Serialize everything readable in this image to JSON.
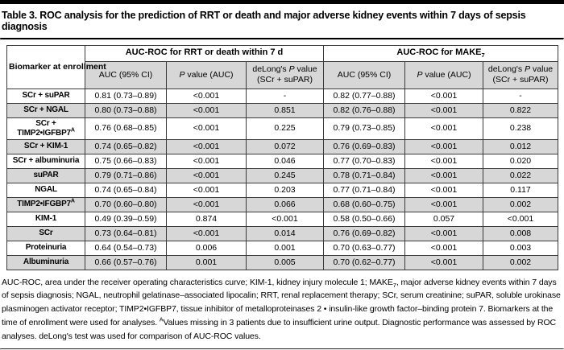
{
  "title": "Table 3. ROC analysis for the prediction of RRT or death and major adverse kidney events within 7 days of sepsis diagnosis",
  "table": {
    "col1_header": "Biomarker at enrollment",
    "group1": "AUC-ROC for RRT or death within 7 d",
    "group2_base": "AUC-ROC for MAKE",
    "group2_sub": "7",
    "sub": {
      "auc": "AUC (95% CI)",
      "p_italic": "P",
      "p_rest": " value (AUC)",
      "delong_pre": "deLong's ",
      "delong_italic": "P",
      "delong_rest": " value",
      "delong_line2": "(SCr + suPAR)"
    },
    "rows": [
      {
        "label": "SCr + suPAR",
        "label2": "",
        "sup": "",
        "values": [
          "0.81 (0.73–0.89)",
          "<0.001",
          "-",
          "0.82 (0.77–0.88)",
          "<0.001",
          "-"
        ]
      },
      {
        "label": "SCr + NGAL",
        "label2": "",
        "sup": "",
        "values": [
          "0.80 (0.73–0.88)",
          "<0.001",
          "0.851",
          "0.82 (0.76–0.88)",
          "<0.001",
          "0.822"
        ]
      },
      {
        "label": "SCr +",
        "label2": "TIMP2•IGFBP7",
        "sup": "A",
        "values": [
          "0.76 (0.68–0.85)",
          "<0.001",
          "0.225",
          "0.79 (0.73–0.85)",
          "<0.001",
          "0.238"
        ]
      },
      {
        "label": "SCr + KIM-1",
        "label2": "",
        "sup": "",
        "values": [
          "0.74 (0.65–0.82)",
          "<0.001",
          "0.072",
          "0.76 (0.69–0.83)",
          "<0.001",
          "0.012"
        ]
      },
      {
        "label": "SCr + albuminuria",
        "label2": "",
        "sup": "",
        "values": [
          "0.75 (0.66–0.83)",
          "<0.001",
          "0.046",
          "0.77 (0.70–0.83)",
          "<0.001",
          "0.020"
        ]
      },
      {
        "label": "suPAR",
        "label2": "",
        "sup": "",
        "values": [
          "0.79 (0.71–0.86)",
          "<0.001",
          "0.245",
          "0.78 (0.71–0.84)",
          "<0.001",
          "0.022"
        ]
      },
      {
        "label": "NGAL",
        "label2": "",
        "sup": "",
        "values": [
          "0.74 (0.65–0.84)",
          "<0.001",
          "0.203",
          "0.77 (0.71–0.84)",
          "<0.001",
          "0.117"
        ]
      },
      {
        "label": "TIMP2•IFGBP7",
        "label2": "",
        "sup": "A",
        "values": [
          "0.70 (0.60–0.80)",
          "<0.001",
          "0.066",
          "0.68 (0.60–0.75)",
          "<0.001",
          "0.002"
        ]
      },
      {
        "label": "KIM-1",
        "label2": "",
        "sup": "",
        "values": [
          "0.49 (0.39–0.59)",
          "0.874",
          "<0.001",
          "0.58 (0.50–0.66)",
          "0.057",
          "<0.001"
        ]
      },
      {
        "label": "SCr",
        "label2": "",
        "sup": "",
        "values": [
          "0.73 (0.64–0.81)",
          "<0.001",
          "0.014",
          "0.76 (0.69–0.82)",
          "<0.001",
          "0.008"
        ]
      },
      {
        "label": "Proteinuria",
        "label2": "",
        "sup": "",
        "values": [
          "0.64 (0.54–0.73)",
          "0.006",
          "0.001",
          "0.70 (0.63–0.77)",
          "<0.001",
          "0.003"
        ]
      },
      {
        "label": "Albuminuria",
        "label2": "",
        "sup": "",
        "values": [
          "0.66 (0.57–0.76)",
          "0.001",
          "0.005",
          "0.70 (0.62–0.77)",
          "<0.001",
          "0.002"
        ]
      }
    ]
  },
  "footnote": {
    "part1": "AUC-ROC, area under the receiver operating characteristics curve; KIM-1, kidney injury molecule 1; MAKE",
    "sub1": "7",
    "part2": ", major adverse kidney events within 7 days of sepsis diagnosis; NGAL, neutrophil gelatinase–associated lipocalin; RRT, renal replacement therapy; SCr, serum creatinine; suPAR, soluble urokinase plasminogen activator receptor; TIMP2•IGFBP7, tissue inhibitor of metalloproteinases 2 • insulin-like growth factor–binding protein 7. Biomarkers at the time of enrollment were used for analyses. ",
    "sup1": "A",
    "part3": "Values missing in 3 patients due to insufficient urine output. Diagnostic performance was assessed by ROC analyses. deLong's test was used for comparison of AUC-ROC values."
  },
  "colors": {
    "top_bar": "#000000",
    "shaded_row": "#d7d7d7",
    "border": "#3a3a3a"
  }
}
